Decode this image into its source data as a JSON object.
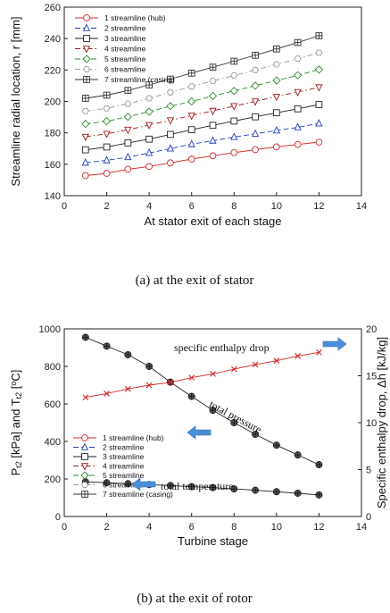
{
  "chart_data": [
    {
      "type": "line",
      "caption": "(a)  at  the  exit  of  stator",
      "xlabel": "At stator exit of each stage",
      "ylabel": "Streamline radial location, r [mm]",
      "xlim": [
        0,
        14
      ],
      "ylim": [
        140,
        260
      ],
      "xticks": [
        0,
        2,
        4,
        6,
        8,
        10,
        12,
        14
      ],
      "yticks": [
        140,
        160,
        180,
        200,
        220,
        240,
        260
      ],
      "legend_position": "top-left",
      "x": [
        1,
        2,
        3,
        4,
        5,
        6,
        7,
        8,
        9,
        10,
        11,
        12
      ],
      "series": [
        {
          "name": "1 streamline (hub)",
          "color": "#d62728",
          "dash": "solid",
          "marker": "circle",
          "values": [
            152.8,
            154.2,
            156.8,
            158.6,
            160.9,
            163.3,
            165.4,
            167.4,
            169.3,
            171.1,
            172.6,
            174.1
          ]
        },
        {
          "name": "2 streamline",
          "color": "#1f3fbf",
          "dash": "dash",
          "marker": "triangle-up",
          "values": [
            161.0,
            162.5,
            164.5,
            167.2,
            170.0,
            172.8,
            175.0,
            177.3,
            179.4,
            181.5,
            183.5,
            186.0
          ]
        },
        {
          "name": "3 streamline",
          "color": "#222222",
          "dash": "solid",
          "marker": "square",
          "values": [
            169.2,
            171.0,
            173.6,
            176.0,
            179.0,
            182.0,
            184.8,
            187.5,
            190.2,
            192.8,
            195.3,
            198.0
          ]
        },
        {
          "name": "4 streamline",
          "color": "#a01818",
          "dash": "dashdot",
          "marker": "triangle-down",
          "values": [
            177.5,
            179.4,
            182.0,
            185.0,
            188.0,
            191.0,
            194.0,
            197.0,
            200.0,
            203.0,
            206.0,
            209.0
          ]
        },
        {
          "name": "5 streamline",
          "color": "#2e8b2e",
          "dash": "dash",
          "marker": "diamond",
          "values": [
            185.7,
            187.4,
            190.2,
            193.5,
            197.0,
            200.0,
            203.5,
            206.7,
            210.0,
            213.3,
            216.6,
            220.3
          ]
        },
        {
          "name": "6 streamline",
          "color": "#999999",
          "dash": "dashdot",
          "marker": "hexagon",
          "values": [
            193.8,
            195.6,
            198.6,
            202.0,
            205.8,
            209.5,
            213.0,
            216.5,
            220.0,
            223.6,
            227.2,
            231.0
          ]
        },
        {
          "name": "7 streamline (casing)",
          "color": "#333333",
          "dash": "solid",
          "marker": "square-cross",
          "values": [
            202.0,
            204.0,
            207.0,
            210.5,
            214.2,
            218.0,
            221.8,
            225.6,
            229.4,
            233.4,
            237.5,
            241.8
          ]
        }
      ]
    },
    {
      "type": "line",
      "caption": "(b)  at  the  exit  of  rotor",
      "xlabel": "Turbine stage",
      "ylabel_parts": [
        "P",
        "t2",
        " [kPa] and T",
        "t2",
        " [",
        "o",
        "C]"
      ],
      "y2label": "Specific enthalpy drop, Δh [kJ/kg]",
      "xlim": [
        0,
        14
      ],
      "ylim": [
        0,
        1000
      ],
      "y2lim": [
        0,
        20
      ],
      "xticks": [
        0,
        2,
        4,
        6,
        8,
        10,
        12,
        14
      ],
      "yticks": [
        0,
        200,
        400,
        600,
        800,
        1000
      ],
      "y2ticks": [
        0,
        5,
        10,
        15,
        20
      ],
      "legend_position": "center-left",
      "legend": [
        {
          "name": "1 streamline (hub)",
          "color": "#d62728",
          "dash": "solid",
          "marker": "circle"
        },
        {
          "name": "2 streamline",
          "color": "#1f3fbf",
          "dash": "dash",
          "marker": "triangle-up"
        },
        {
          "name": "3 streamline",
          "color": "#222222",
          "dash": "solid",
          "marker": "square"
        },
        {
          "name": "4 streamline",
          "color": "#a01818",
          "dash": "dashdot",
          "marker": "triangle-down"
        },
        {
          "name": "5 streamline",
          "color": "#2e8b2e",
          "dash": "dash",
          "marker": "diamond"
        },
        {
          "name": "6 streamline",
          "color": "#999999",
          "dash": "dashdot",
          "marker": "hexagon"
        },
        {
          "name": "7 streamline (casing)",
          "color": "#333333",
          "dash": "solid",
          "marker": "square-cross"
        }
      ],
      "x": [
        1,
        2,
        3,
        4,
        5,
        6,
        7,
        8,
        9,
        10,
        11,
        12
      ],
      "series": [
        {
          "key": "total_pressure",
          "axis": "left",
          "color": "#222222",
          "marker": "square-cross",
          "values": [
            955,
            908,
            862,
            800,
            716,
            640,
            566,
            500,
            438,
            380,
            328,
            276
          ]
        },
        {
          "key": "total_temperature",
          "axis": "left",
          "color": "#222222",
          "marker": "square-cross",
          "values": [
            185,
            180,
            175,
            170,
            165,
            159,
            154,
            147,
            140,
            132,
            124,
            115
          ]
        },
        {
          "key": "enthalpy_drop",
          "axis": "right",
          "color": "#d62728",
          "marker": "x",
          "values": [
            12.7,
            13.1,
            13.6,
            14.0,
            14.3,
            14.8,
            15.2,
            15.7,
            16.2,
            16.6,
            17.1,
            17.5
          ]
        }
      ],
      "annotations": [
        {
          "text": "specific enthalpy drop",
          "arrow": "right"
        },
        {
          "text": "total pressure",
          "arrow": "left"
        },
        {
          "text": "total temperature",
          "arrow": "left"
        }
      ]
    }
  ]
}
